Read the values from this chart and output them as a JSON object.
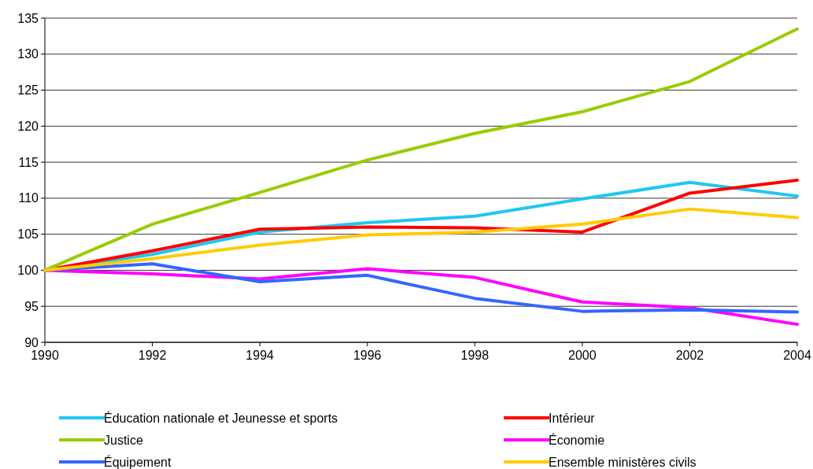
{
  "chart_data": {
    "type": "line",
    "x": [
      1990,
      1992,
      1994,
      1996,
      1998,
      2000,
      2002,
      2004
    ],
    "xlim": [
      1990,
      2004
    ],
    "xticks": [
      1990,
      1992,
      1994,
      1996,
      1998,
      2000,
      2002,
      2004
    ],
    "ylim": [
      90,
      135
    ],
    "yticks": [
      90,
      95,
      100,
      105,
      110,
      115,
      120,
      125,
      130,
      135
    ],
    "grid": "y",
    "legend": "bottom",
    "marker": "none",
    "line_style": "solid",
    "series": [
      {
        "name": "Éducation nationale et Jeunesse et sports",
        "color": "#1ec8f0",
        "values": [
          100,
          102.2,
          105.3,
          106.6,
          107.5,
          109.9,
          112.2,
          110.3
        ]
      },
      {
        "name": "Intérieur",
        "color": "#ff0000",
        "values": [
          100,
          102.7,
          105.7,
          106,
          105.9,
          105.3,
          110.7,
          112.5
        ]
      },
      {
        "name": "Justice",
        "color": "#99cc00",
        "values": [
          100,
          106.4,
          110.8,
          115.3,
          119,
          122,
          126.2,
          133.5
        ]
      },
      {
        "name": "Économie",
        "color": "#ff00ff",
        "values": [
          100,
          99.5,
          98.8,
          100.2,
          99,
          95.6,
          94.8,
          92.5
        ]
      },
      {
        "name": "Équipement",
        "color": "#3366ff",
        "values": [
          100,
          100.9,
          98.4,
          99.3,
          96.1,
          94.3,
          94.5,
          94.2
        ]
      },
      {
        "name": "Ensemble ministères civils",
        "color": "#ffcc00",
        "values": [
          100,
          101.6,
          103.5,
          104.9,
          105.3,
          106.4,
          108.5,
          107.3
        ]
      }
    ]
  }
}
